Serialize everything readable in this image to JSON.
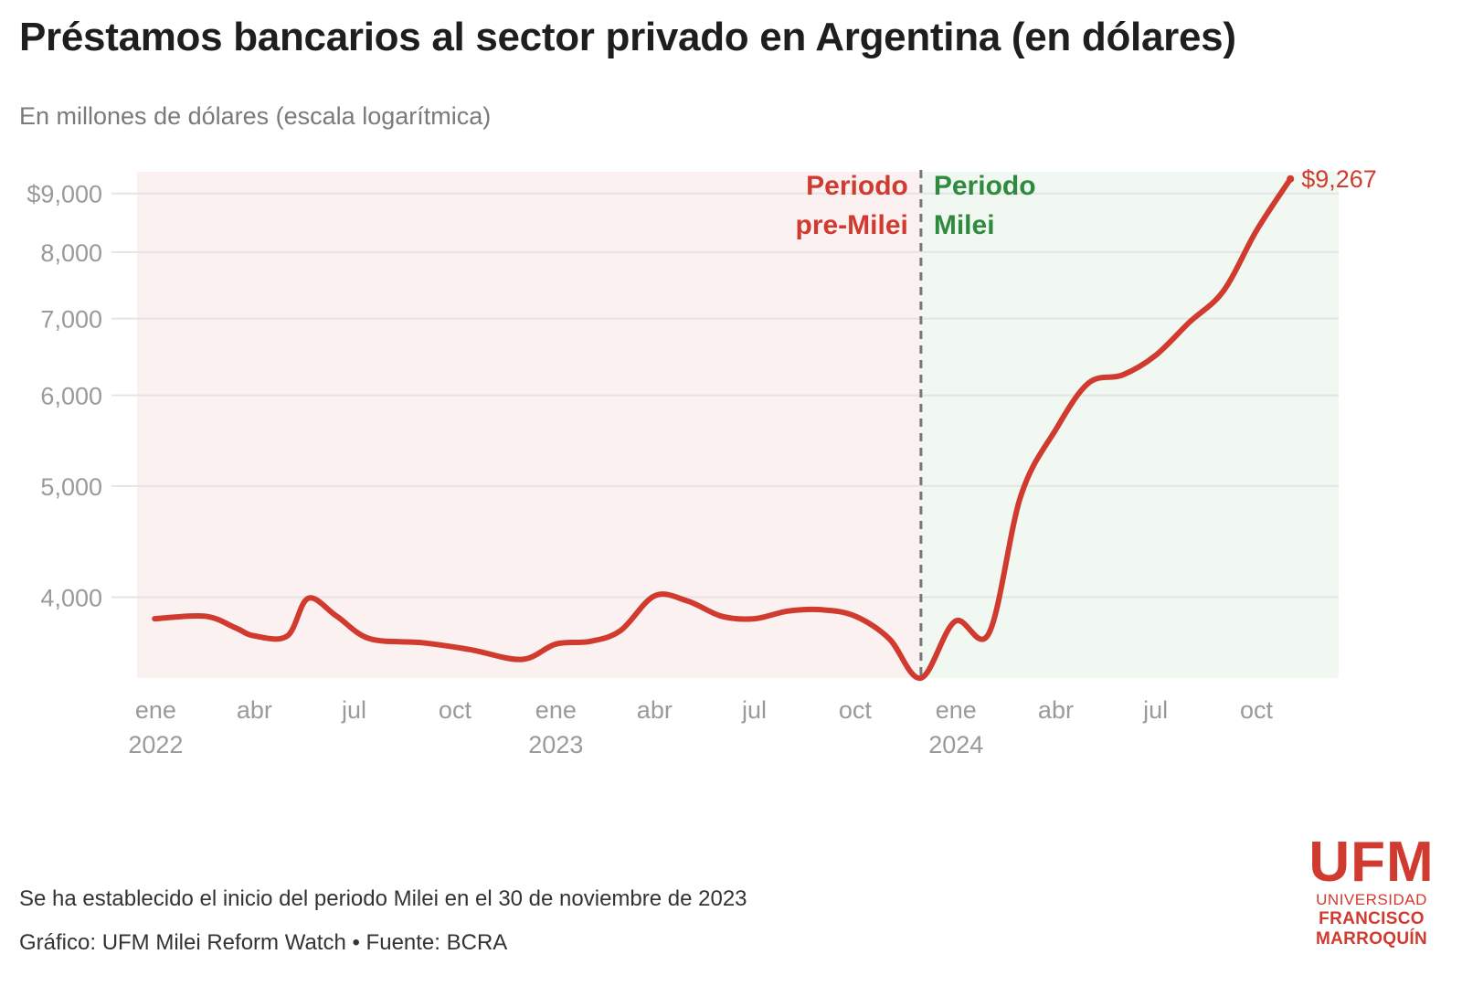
{
  "header": {
    "title": "Préstamos bancarios al sector privado en Argentina (en dólares)",
    "subtitle": "En millones de dólares (escala logarítmica)"
  },
  "chart_data": {
    "type": "line",
    "scale": "log",
    "ylim": [
      3400,
      9400
    ],
    "y_ticks": [
      {
        "value": 4000,
        "label": "4,000"
      },
      {
        "value": 5000,
        "label": "5,000"
      },
      {
        "value": 6000,
        "label": "6,000"
      },
      {
        "value": 7000,
        "label": "7,000"
      },
      {
        "value": 8000,
        "label": "8,000"
      },
      {
        "value": 9000,
        "label": "$9,000"
      }
    ],
    "x_range": [
      "2021-12-15",
      "2024-12-15"
    ],
    "x_ticks": [
      {
        "date": "2022-01-01",
        "label": "ene",
        "year": "2022"
      },
      {
        "date": "2022-04-01",
        "label": "abr",
        "year": ""
      },
      {
        "date": "2022-07-01",
        "label": "jul",
        "year": ""
      },
      {
        "date": "2022-10-01",
        "label": "oct",
        "year": ""
      },
      {
        "date": "2023-01-01",
        "label": "ene",
        "year": "2023"
      },
      {
        "date": "2023-04-01",
        "label": "abr",
        "year": ""
      },
      {
        "date": "2023-07-01",
        "label": "jul",
        "year": ""
      },
      {
        "date": "2023-10-01",
        "label": "oct",
        "year": ""
      },
      {
        "date": "2024-01-01",
        "label": "ene",
        "year": "2024"
      },
      {
        "date": "2024-04-01",
        "label": "abr",
        "year": ""
      },
      {
        "date": "2024-07-01",
        "label": "jul",
        "year": ""
      },
      {
        "date": "2024-10-01",
        "label": "oct",
        "year": ""
      }
    ],
    "series": [
      {
        "color": "#d03a2f",
        "points": [
          [
            "2021-12-31",
            3830
          ],
          [
            "2022-02-15",
            3850
          ],
          [
            "2022-03-15",
            3760
          ],
          [
            "2022-04-01",
            3700
          ],
          [
            "2022-05-01",
            3700
          ],
          [
            "2022-05-20",
            3990
          ],
          [
            "2022-06-15",
            3850
          ],
          [
            "2022-07-15",
            3680
          ],
          [
            "2022-09-01",
            3650
          ],
          [
            "2022-10-15",
            3600
          ],
          [
            "2022-12-01",
            3530
          ],
          [
            "2023-01-01",
            3640
          ],
          [
            "2023-02-01",
            3660
          ],
          [
            "2023-03-01",
            3740
          ],
          [
            "2023-04-01",
            4010
          ],
          [
            "2023-05-01",
            3970
          ],
          [
            "2023-06-01",
            3850
          ],
          [
            "2023-07-01",
            3830
          ],
          [
            "2023-08-01",
            3890
          ],
          [
            "2023-09-01",
            3900
          ],
          [
            "2023-10-01",
            3850
          ],
          [
            "2023-11-01",
            3680
          ],
          [
            "2023-11-30",
            3400
          ],
          [
            "2023-12-31",
            3810
          ],
          [
            "2024-01-31",
            3720
          ],
          [
            "2024-02-29",
            4900
          ],
          [
            "2024-04-01",
            5600
          ],
          [
            "2024-05-01",
            6150
          ],
          [
            "2024-06-01",
            6250
          ],
          [
            "2024-07-01",
            6500
          ],
          [
            "2024-08-01",
            6950
          ],
          [
            "2024-09-01",
            7400
          ],
          [
            "2024-10-01",
            8350
          ],
          [
            "2024-11-01",
            9267
          ]
        ]
      }
    ],
    "end_label": "$9,267",
    "milei_start": "2023-11-30",
    "regions": [
      {
        "label_line1": "Periodo",
        "label_line2": "pre-Milei",
        "color": "#d03a2f",
        "bg": "#fbf1f0"
      },
      {
        "label_line1": "Periodo",
        "label_line2": "Milei",
        "color": "#2e8a3e",
        "bg": "#f1f7f1"
      }
    ],
    "grid": true,
    "colors": {
      "grid": "#e4e4e4",
      "tick": "#9a9a9a",
      "divider": "#777777"
    }
  },
  "footer": {
    "note": "Se ha establecido el inicio del periodo Milei en el 30 de noviembre de 2023",
    "credit": "Gráfico: UFM Milei Reform Watch • Fuente: BCRA"
  },
  "logo": {
    "mark": "UFM",
    "line1": "UNIVERSIDAD",
    "line2": "FRANCISCO",
    "line3": "MARROQUÍN",
    "color": "#d03a2f"
  }
}
